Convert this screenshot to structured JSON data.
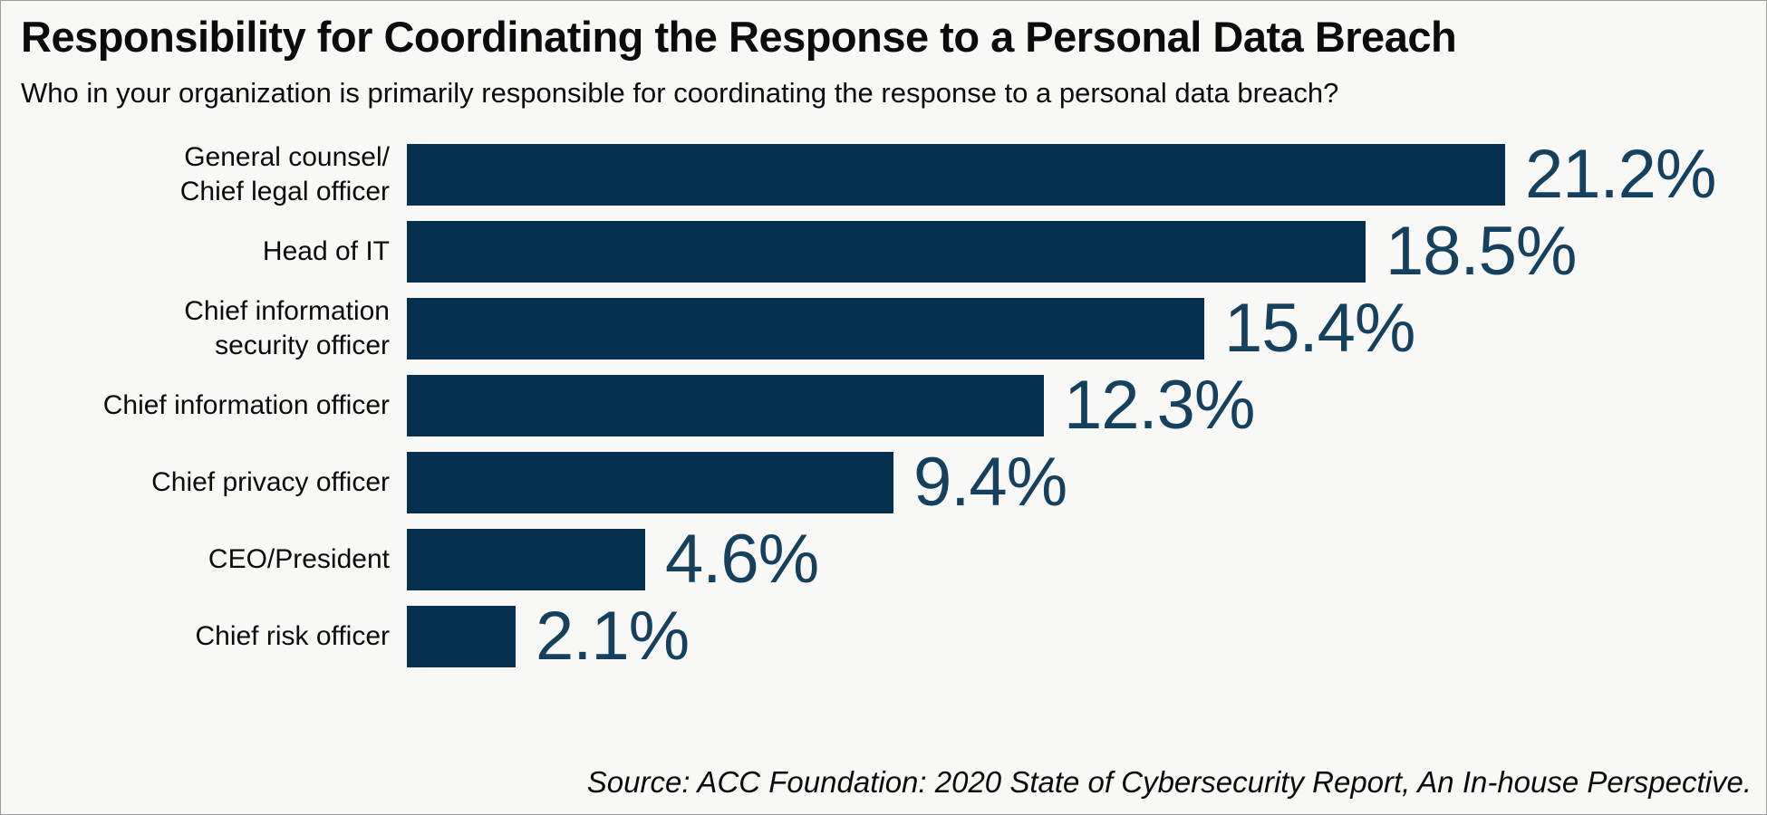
{
  "page": {
    "title": "Responsibility for Coordinating the Response to a Personal Data Breach",
    "subtitle": "Who in your organization is primarily responsible for coordinating the response to a personal data breach?",
    "source": "Source: ACC Foundation: 2020 State of Cybersecurity Report, An In-house Perspective."
  },
  "colors": {
    "background": "#f8f8f6",
    "bar": "#04304d",
    "value_label": "#15405e",
    "text": "#0b0b0b"
  },
  "chart_data": {
    "type": "bar",
    "orientation": "horizontal",
    "title": "Responsibility for Coordinating the Response to a Personal Data Breach",
    "subtitle": "Who in your organization is primarily responsible for coordinating the response to a personal data breach?",
    "categories": [
      "General counsel/\nChief legal officer",
      "Head of IT",
      "Chief information\nsecurity officer",
      "Chief information officer",
      "Chief privacy officer",
      "CEO/President",
      "Chief risk officer"
    ],
    "values": [
      21.2,
      18.5,
      15.4,
      12.3,
      9.4,
      4.6,
      2.1
    ],
    "value_labels": [
      "21.2%",
      "18.5%",
      "15.4%",
      "12.3%",
      "9.4%",
      "4.6%",
      "2.1%"
    ],
    "xlim": [
      0,
      21.2
    ],
    "xlabel": "",
    "ylabel": "",
    "grid": false,
    "legend": "none",
    "value_label_position": "outside-end",
    "source": "Source: ACC Foundation: 2020 State of Cybersecurity Report, An In-house Perspective."
  }
}
